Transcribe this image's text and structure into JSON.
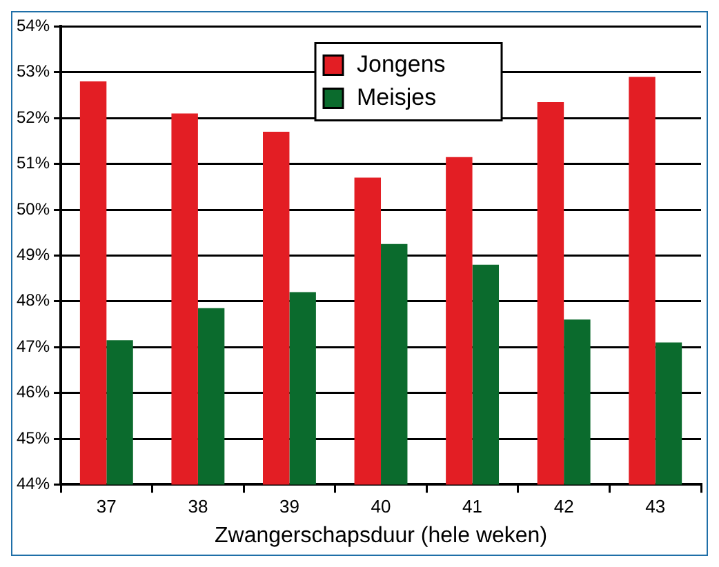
{
  "chart_data": {
    "type": "bar",
    "xlabel": "Zwangerschapsduur (hele weken)",
    "categories": [
      "37",
      "38",
      "39",
      "40",
      "41",
      "42",
      "43"
    ],
    "series": [
      {
        "name": "Jongens",
        "color": "#e31e24",
        "values": [
          52.8,
          52.1,
          51.7,
          50.7,
          51.15,
          52.35,
          52.9
        ]
      },
      {
        "name": "Meisjes",
        "color": "#0b6b2d",
        "values": [
          47.15,
          47.85,
          48.2,
          49.25,
          48.8,
          47.6,
          47.1
        ]
      }
    ],
    "ylim": [
      44,
      54
    ],
    "yticks": [
      {
        "value": 44,
        "label": "44%"
      },
      {
        "value": 45,
        "label": "45%"
      },
      {
        "value": 46,
        "label": "46%"
      },
      {
        "value": 47,
        "label": "47%"
      },
      {
        "value": 48,
        "label": "48%"
      },
      {
        "value": 49,
        "label": "49%"
      },
      {
        "value": 50,
        "label": "50%"
      },
      {
        "value": 51,
        "label": "51%"
      },
      {
        "value": 52,
        "label": "52%"
      },
      {
        "value": 53,
        "label": "53%"
      },
      {
        "value": 54,
        "label": "54%"
      }
    ],
    "grid": "y",
    "legend": "top"
  }
}
